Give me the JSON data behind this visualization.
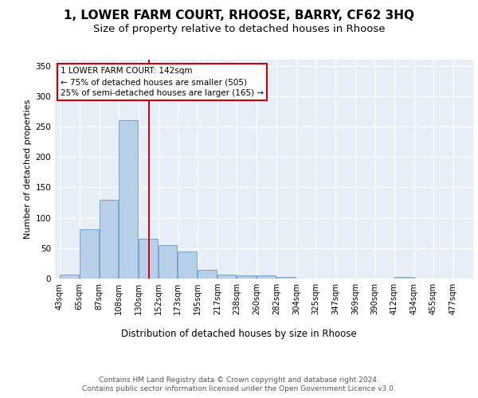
{
  "title1": "1, LOWER FARM COURT, RHOOSE, BARRY, CF62 3HQ",
  "title2": "Size of property relative to detached houses in Rhoose",
  "xlabel": "Distribution of detached houses by size in Rhoose",
  "ylabel": "Number of detached properties",
  "bar_values": [
    6,
    81,
    130,
    261,
    66,
    55,
    44,
    14,
    6,
    5,
    5,
    3,
    0,
    0,
    0,
    0,
    0,
    3,
    0,
    0
  ],
  "bin_edges": [
    43,
    65,
    87,
    108,
    130,
    152,
    173,
    195,
    217,
    238,
    260,
    282,
    304,
    325,
    347,
    369,
    390,
    412,
    434,
    455,
    477
  ],
  "tick_labels": [
    "43sqm",
    "65sqm",
    "87sqm",
    "108sqm",
    "130sqm",
    "152sqm",
    "173sqm",
    "195sqm",
    "217sqm",
    "238sqm",
    "260sqm",
    "282sqm",
    "304sqm",
    "325sqm",
    "347sqm",
    "369sqm",
    "390sqm",
    "412sqm",
    "434sqm",
    "455sqm",
    "477sqm"
  ],
  "bar_color": "#b8cfe8",
  "bar_edge_color": "#6699cc",
  "vline_x": 142,
  "vline_color": "#cc0000",
  "annotation_box_text": "1 LOWER FARM COURT: 142sqm\n← 75% of detached houses are smaller (505)\n25% of semi-detached houses are larger (165) →",
  "ylim": [
    0,
    360
  ],
  "yticks": [
    0,
    50,
    100,
    150,
    200,
    250,
    300,
    350
  ],
  "footer_line1": "Contains HM Land Registry data © Crown copyright and database right 2024.",
  "footer_line2": "Contains public sector information licensed under the Open Government Licence v3.0.",
  "bg_color": "#e8eef8",
  "title_fontsize": 11,
  "subtitle_fontsize": 9.5,
  "xlabel_fontsize": 8.5,
  "ylabel_fontsize": 8,
  "tick_fontsize": 7.2,
  "annotation_fontsize": 7.5
}
